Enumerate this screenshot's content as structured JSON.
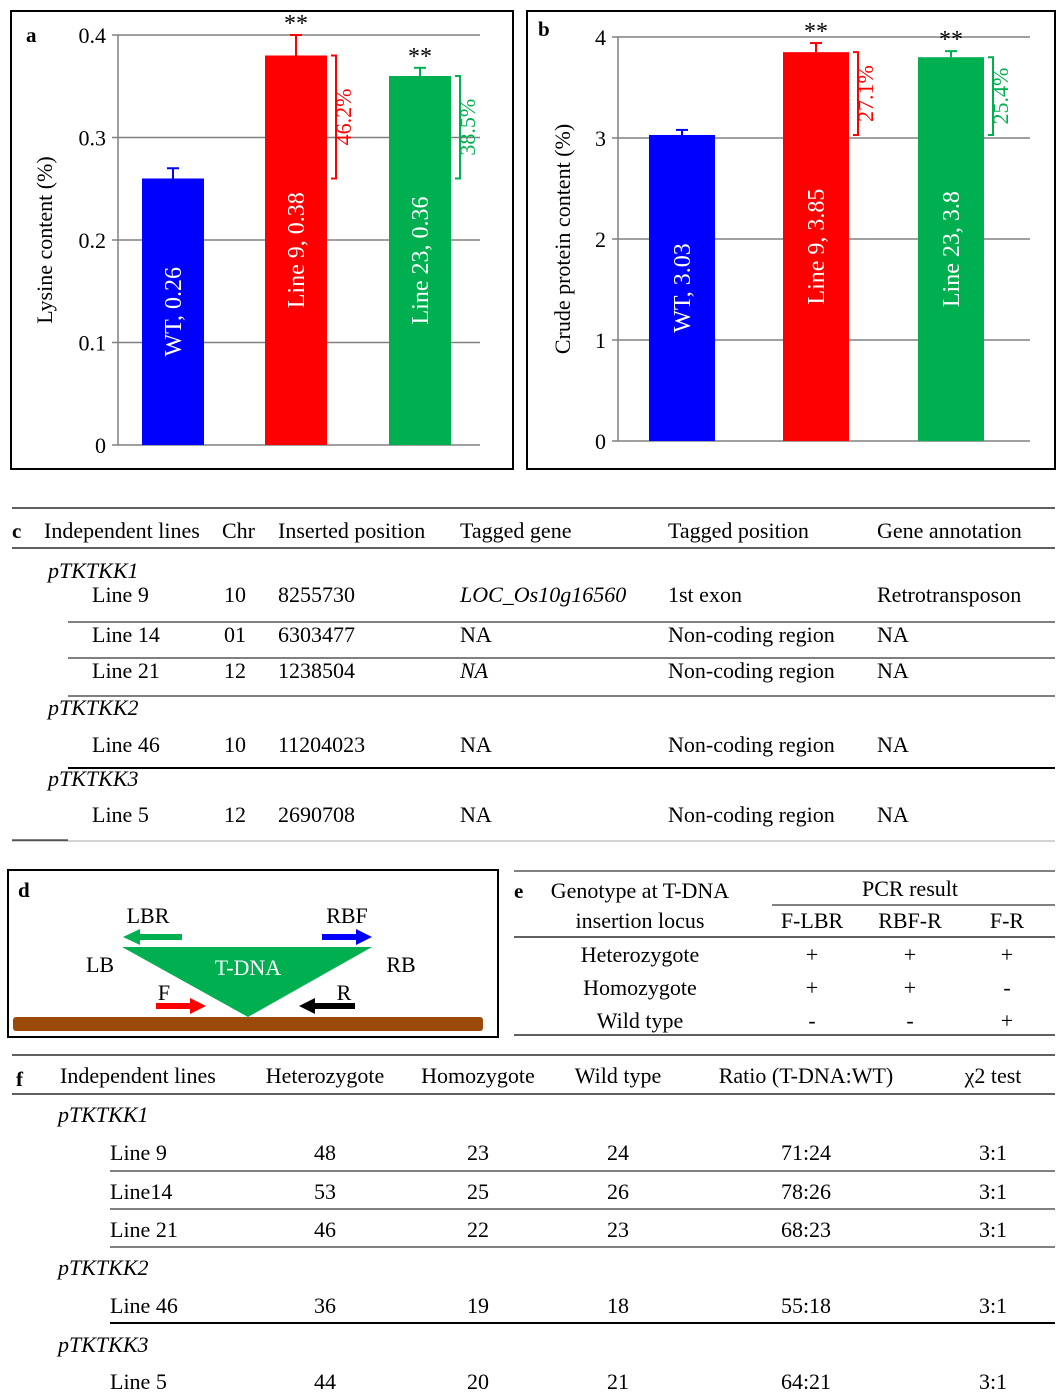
{
  "chart_data": [
    {
      "panel": "a",
      "type": "bar",
      "ylabel": "Lysine content (%)",
      "ylim": [
        0,
        0.4
      ],
      "yticks": [
        "0",
        "0.1",
        "0.2",
        "0.3",
        "0.4"
      ],
      "categories": [
        "WT",
        "Line 9",
        "Line 23"
      ],
      "values": [
        0.26,
        0.38,
        0.36
      ],
      "errors": [
        0.01,
        0.02,
        0.008
      ],
      "bar_labels": [
        "WT, 0.26",
        "Line 9, 0.38",
        "Line 23, 0.36"
      ],
      "significance": [
        "",
        "**",
        "**"
      ],
      "increase_labels": [
        "",
        "46.2%",
        "38.5%"
      ],
      "colors": [
        "#0000ff",
        "#ff0000",
        "#00b050"
      ]
    },
    {
      "panel": "b",
      "type": "bar",
      "ylabel": "Crude protein content (%)",
      "ylim": [
        0,
        4
      ],
      "yticks": [
        "0",
        "1",
        "2",
        "3",
        "4"
      ],
      "categories": [
        "WT",
        "Line 9",
        "Line 23"
      ],
      "values": [
        3.03,
        3.85,
        3.8
      ],
      "errors": [
        0.05,
        0.09,
        0.06
      ],
      "bar_labels": [
        "WT, 3.03",
        "Line 9, 3.85",
        "Line 23, 3.8"
      ],
      "significance": [
        "",
        "**",
        "**"
      ],
      "increase_labels": [
        "",
        "27.1%",
        "25.4%"
      ],
      "colors": [
        "#0000ff",
        "#ff0000",
        "#00b050"
      ]
    }
  ],
  "table_c": {
    "label": "c",
    "headers": [
      "Independent lines",
      "Chr",
      "Inserted position",
      "Tagged gene",
      "Tagged position",
      "Gene annotation"
    ],
    "groups": [
      {
        "name": "pTKTKK1",
        "rows": [
          [
            "Line 9",
            "10",
            "8255730",
            "LOC_Os10g16560",
            "1st exon",
            "Retrotransposon"
          ],
          [
            "Line 14",
            "01",
            "6303477",
            "NA",
            "Non-coding region",
            "NA"
          ],
          [
            "Line 21",
            "12",
            "1238504",
            "NA",
            "Non-coding region",
            "NA"
          ]
        ]
      },
      {
        "name": "pTKTKK2",
        "rows": [
          [
            "Line 46",
            "10",
            "11204023",
            "NA",
            "Non-coding region",
            "NA"
          ]
        ]
      },
      {
        "name": "pTKTKK3",
        "rows": [
          [
            "Line 5",
            "12",
            "2690708",
            "NA",
            "Non-coding region",
            "NA"
          ]
        ]
      }
    ]
  },
  "diagram_d": {
    "label": "d",
    "tdna": "T-DNA",
    "lb": "LB",
    "rb": "RB",
    "lbr": "LBR",
    "rbf": "RBF",
    "f": "F",
    "r": "R"
  },
  "table_e": {
    "label": "e",
    "header_left_1": "Genotype at T-DNA",
    "header_left_2": "insertion locus",
    "header_group": "PCR result",
    "subheaders": [
      "F-LBR",
      "RBF-R",
      "F-R"
    ],
    "rows": [
      [
        "Heterozygote",
        "+",
        "+",
        "+"
      ],
      [
        "Homozygote",
        "+",
        "+",
        "-"
      ],
      [
        "Wild type",
        "-",
        "-",
        "+"
      ]
    ]
  },
  "table_f": {
    "label": "f",
    "headers": [
      "Independent lines",
      "Heterozygote",
      "Homozygote",
      "Wild type",
      "Ratio (T-DNA:WT)",
      "χ2 test"
    ],
    "groups": [
      {
        "name": "pTKTKK1",
        "rows": [
          [
            "Line 9",
            "48",
            "23",
            "24",
            "71:24",
            "3:1"
          ],
          [
            "Line14",
            "53",
            "25",
            "26",
            "78:26",
            "3:1"
          ],
          [
            "Line 21",
            "46",
            "22",
            "23",
            "68:23",
            "3:1"
          ]
        ]
      },
      {
        "name": "pTKTKK2",
        "rows": [
          [
            "Line 46",
            "36",
            "19",
            "18",
            "55:18",
            "3:1"
          ]
        ]
      },
      {
        "name": "pTKTKK3",
        "rows": [
          [
            "Line 5",
            "44",
            "20",
            "21",
            "64:21",
            "3:1"
          ]
        ]
      }
    ]
  }
}
